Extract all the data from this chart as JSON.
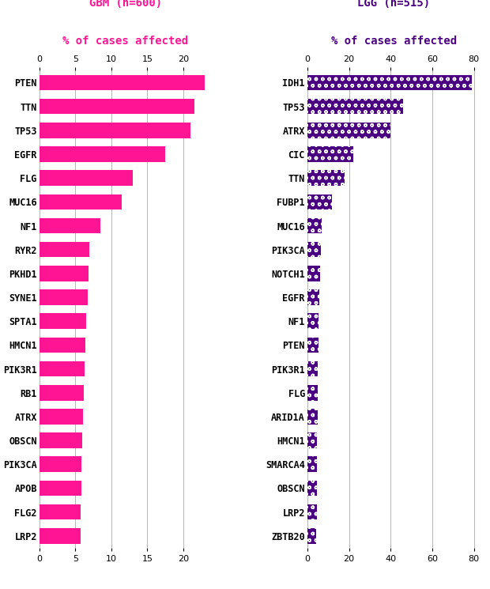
{
  "gbm_genes": [
    "PTEN",
    "TTN",
    "TP53",
    "EGFR",
    "FLG",
    "MUC16",
    "NF1",
    "RYR2",
    "PKHD1",
    "SYNE1",
    "SPTA1",
    "HMCN1",
    "PIK3R1",
    "RB1",
    "ATRX",
    "OBSCN",
    "PIK3CA",
    "APOB",
    "FLG2",
    "LRP2"
  ],
  "gbm_values": [
    23.0,
    21.5,
    21.0,
    17.5,
    13.0,
    11.5,
    8.5,
    7.0,
    6.8,
    6.7,
    6.5,
    6.4,
    6.3,
    6.2,
    6.1,
    6.0,
    5.9,
    5.85,
    5.8,
    5.7
  ],
  "lgg_genes": [
    "IDH1",
    "TP53",
    "ATRX",
    "CIC",
    "TTN",
    "FUBP1",
    "MUC16",
    "PIK3CA",
    "NOTCH1",
    "EGFR",
    "NF1",
    "PTEN",
    "PIK3R1",
    "FLG",
    "ARID1A",
    "HMCN1",
    "SMARCA4",
    "OBSCN",
    "LRP2",
    "ZBTB20"
  ],
  "lgg_values": [
    79.0,
    46.0,
    40.0,
    22.0,
    18.0,
    12.0,
    7.0,
    6.5,
    6.3,
    5.8,
    5.5,
    5.3,
    5.1,
    5.0,
    4.9,
    4.8,
    4.7,
    4.6,
    4.5,
    4.4
  ],
  "gbm_color": "#FF1493",
  "lgg_color": "#4B0082",
  "gbm_title_line1": "GBM (n=600)",
  "gbm_title_line2": "% of cases affected",
  "lgg_title_line1": "LGG (n=515)",
  "lgg_title_line2": "% of cases affected",
  "gbm_xlim": [
    0,
    24
  ],
  "lgg_xlim": [
    0,
    83
  ],
  "gbm_xticks": [
    0,
    5,
    10,
    15,
    20
  ],
  "lgg_xticks": [
    0,
    20,
    40,
    60,
    80
  ]
}
